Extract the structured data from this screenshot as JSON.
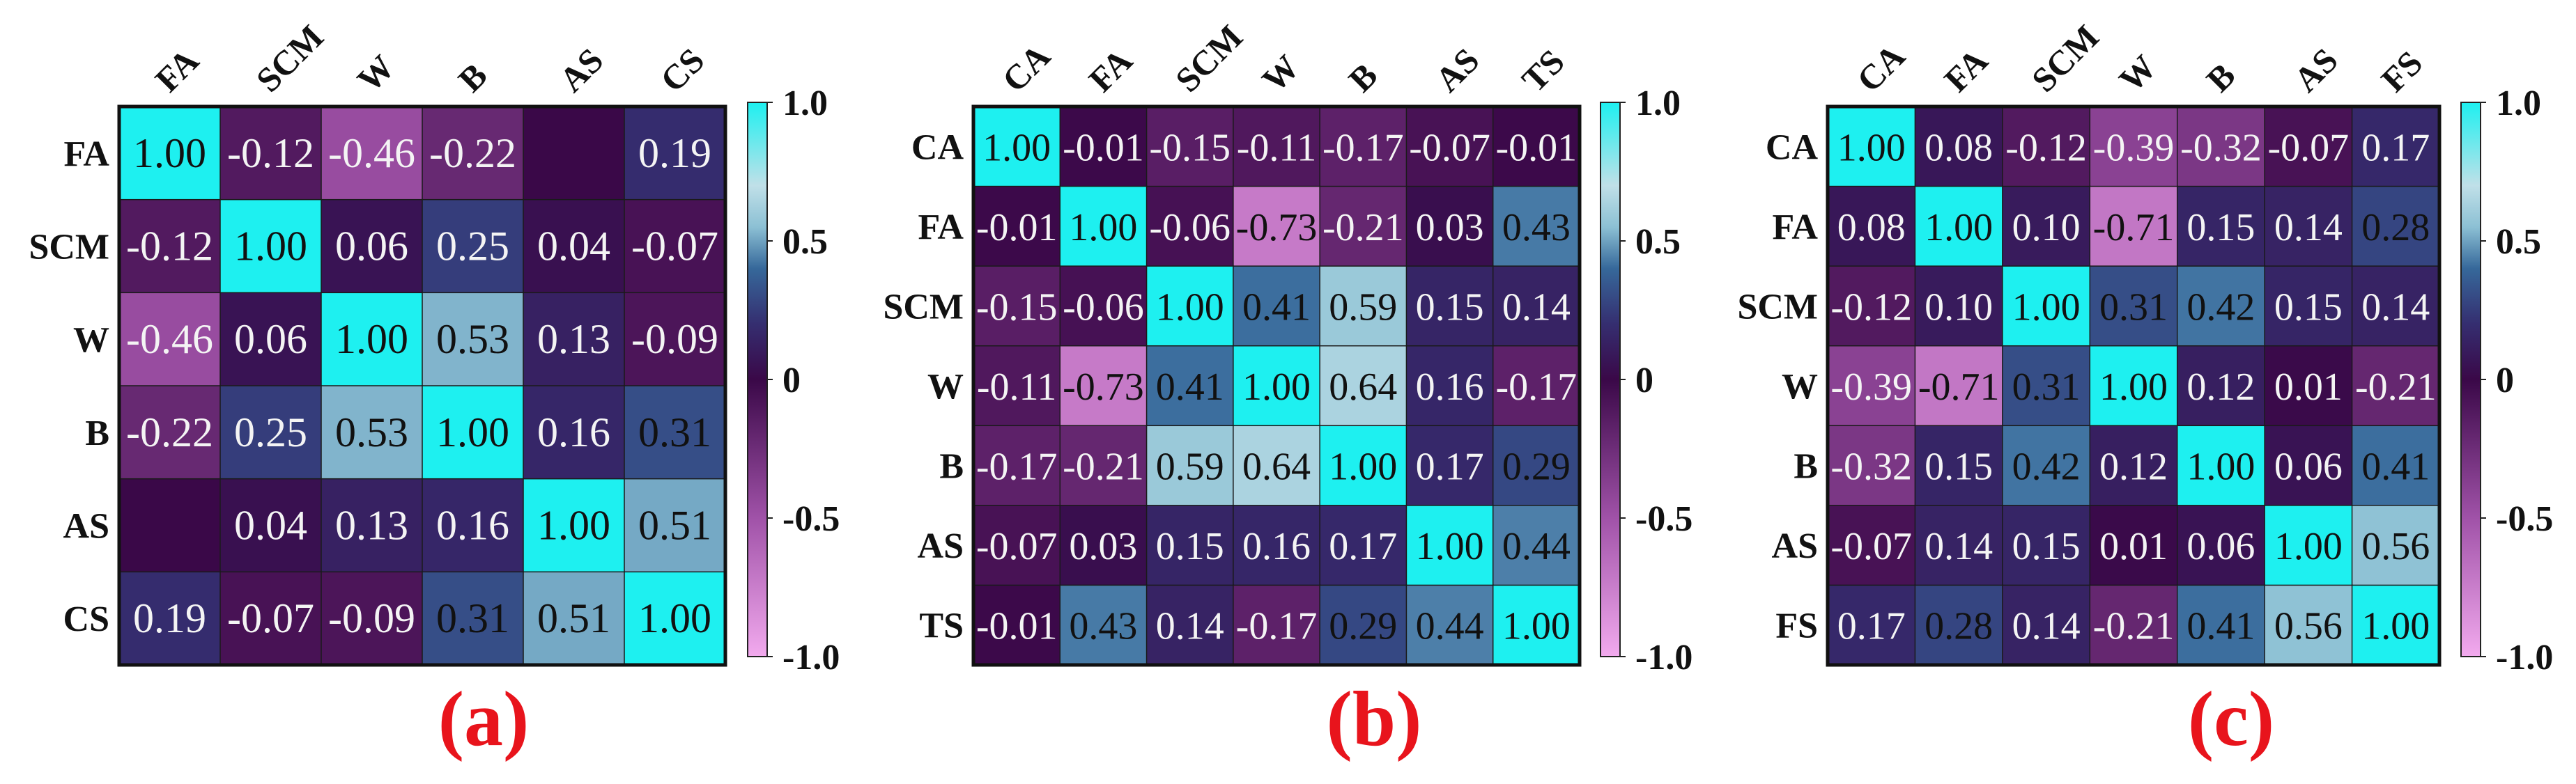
{
  "chart_data": [
    {
      "type": "heatmap",
      "panel_label": "(a)",
      "rows": [
        "FA",
        "SCM",
        "W",
        "B",
        "AS",
        "CS"
      ],
      "columns": [
        "FA",
        "SCM",
        "W",
        "B",
        "AS",
        "CS"
      ],
      "values": [
        [
          1.0,
          -0.12,
          -0.46,
          -0.22,
          null,
          0.19
        ],
        [
          -0.12,
          1.0,
          0.06,
          0.25,
          0.04,
          -0.07
        ],
        [
          -0.46,
          0.06,
          1.0,
          0.53,
          0.13,
          -0.09
        ],
        [
          -0.22,
          0.25,
          0.53,
          1.0,
          0.16,
          0.31
        ],
        [
          null,
          0.04,
          0.13,
          0.16,
          1.0,
          0.51
        ],
        [
          0.19,
          -0.07,
          -0.09,
          0.31,
          0.51,
          1.0
        ]
      ],
      "colorbar": {
        "range": [
          -1.0,
          1.0
        ],
        "ticks": [
          "1.0",
          "0.5",
          "0",
          "-0.5",
          "-1.0"
        ],
        "tick_values": [
          1.0,
          0.5,
          0,
          -0.5,
          -1.0
        ]
      }
    },
    {
      "type": "heatmap",
      "panel_label": "(b)",
      "rows": [
        "CA",
        "FA",
        "SCM",
        "W",
        "B",
        "AS",
        "TS"
      ],
      "columns": [
        "CA",
        "FA",
        "SCM",
        "W",
        "B",
        "AS",
        "TS"
      ],
      "values": [
        [
          1.0,
          -0.01,
          -0.15,
          -0.11,
          -0.17,
          -0.07,
          -0.01
        ],
        [
          -0.01,
          1.0,
          -0.06,
          -0.73,
          -0.21,
          0.03,
          0.43
        ],
        [
          -0.15,
          -0.06,
          1.0,
          0.41,
          0.59,
          0.15,
          0.14
        ],
        [
          -0.11,
          -0.73,
          0.41,
          1.0,
          0.64,
          0.16,
          -0.17
        ],
        [
          -0.17,
          -0.21,
          0.59,
          0.64,
          1.0,
          0.17,
          0.29
        ],
        [
          -0.07,
          0.03,
          0.15,
          0.16,
          0.17,
          1.0,
          0.44
        ],
        [
          -0.01,
          0.43,
          0.14,
          -0.17,
          0.29,
          0.44,
          1.0
        ]
      ],
      "colorbar": {
        "range": [
          -1.0,
          1.0
        ],
        "ticks": [
          "1.0",
          "0.5",
          "0",
          "-0.5",
          "-1.0"
        ],
        "tick_values": [
          1.0,
          0.5,
          0,
          -0.5,
          -1.0
        ]
      }
    },
    {
      "type": "heatmap",
      "panel_label": "(c)",
      "rows": [
        "CA",
        "FA",
        "SCM",
        "W",
        "B",
        "AS",
        "FS"
      ],
      "columns": [
        "CA",
        "FA",
        "SCM",
        "W",
        "B",
        "AS",
        "FS"
      ],
      "values": [
        [
          1.0,
          0.08,
          -0.12,
          -0.39,
          -0.32,
          -0.07,
          0.17
        ],
        [
          0.08,
          1.0,
          0.1,
          -0.71,
          0.15,
          0.14,
          0.28
        ],
        [
          -0.12,
          0.1,
          1.0,
          0.31,
          0.42,
          0.15,
          0.14
        ],
        [
          -0.39,
          -0.71,
          0.31,
          1.0,
          0.12,
          0.01,
          -0.21
        ],
        [
          -0.32,
          0.15,
          0.42,
          0.12,
          1.0,
          0.06,
          0.41
        ],
        [
          -0.07,
          0.14,
          0.15,
          0.01,
          0.06,
          1.0,
          0.56
        ],
        [
          0.17,
          0.28,
          0.14,
          -0.21,
          0.41,
          0.56,
          1.0
        ]
      ],
      "colorbar": {
        "range": [
          -1.0,
          1.0
        ],
        "ticks": [
          "1.0",
          "0.5",
          "0",
          "-0.5",
          "-1.0"
        ],
        "tick_values": [
          1.0,
          0.5,
          0,
          -0.5,
          -1.0
        ]
      }
    }
  ],
  "colors": {
    "colormap_stops": [
      [
        -1.0,
        "#f2aaee"
      ],
      [
        -0.5,
        "#a052a8"
      ],
      [
        0.0,
        "#3a0848"
      ],
      [
        0.2,
        "#352e70"
      ],
      [
        0.4,
        "#36689a"
      ],
      [
        0.55,
        "#8cc0d4"
      ],
      [
        0.7,
        "#c0e0e8"
      ],
      [
        1.0,
        "#1ef0f0"
      ]
    ],
    "panel_label": "#e8141c"
  }
}
